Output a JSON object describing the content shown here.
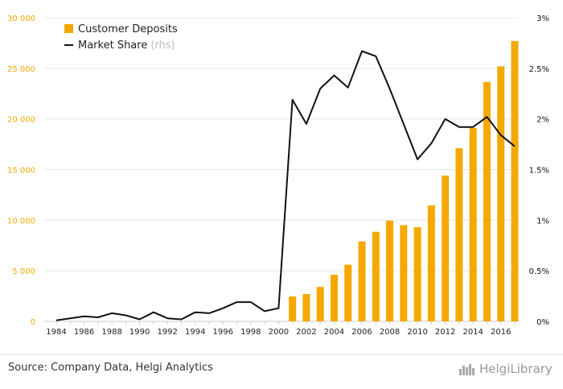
{
  "footer": {
    "source": "Source: Company Data, Helgi Analytics",
    "brand": "HelgiLibrary"
  },
  "colors": {
    "bar": "#f5a800",
    "line": "#111111",
    "left_axis_text": "#f5a800",
    "right_axis_text": "#111111",
    "grid": "#e8e8e8"
  },
  "chart_data": {
    "type": "bar",
    "x": [
      1984,
      1985,
      1986,
      1987,
      1988,
      1989,
      1990,
      1991,
      1992,
      1993,
      1994,
      1995,
      1996,
      1997,
      1998,
      1999,
      2000,
      2001,
      2002,
      2003,
      2004,
      2005,
      2006,
      2007,
      2008,
      2009,
      2010,
      2011,
      2012,
      2013,
      2014,
      2015,
      2016,
      2017
    ],
    "x_tick_labels": [
      "1984",
      "1986",
      "1988",
      "1990",
      "1992",
      "1994",
      "1996",
      "1998",
      "2000",
      "2002",
      "2004",
      "2006",
      "2008",
      "2010",
      "2012",
      "2014",
      "2016"
    ],
    "series": [
      {
        "name": "Customer Deposits",
        "kind": "bar",
        "axis": "left",
        "values": [
          null,
          null,
          null,
          null,
          null,
          null,
          null,
          null,
          null,
          null,
          null,
          null,
          null,
          null,
          null,
          null,
          null,
          2450,
          2700,
          3400,
          4600,
          5600,
          7900,
          8850,
          9950,
          9500,
          9300,
          11450,
          14400,
          17100,
          19100,
          23650,
          25200,
          27700
        ]
      },
      {
        "name": "Market Share",
        "name_suffix": "(rhs)",
        "kind": "line",
        "axis": "right",
        "unit": "%",
        "values": [
          0.01,
          0.03,
          0.05,
          0.04,
          0.08,
          0.06,
          0.02,
          0.09,
          0.03,
          0.02,
          0.09,
          0.08,
          0.13,
          0.19,
          0.19,
          0.1,
          0.13,
          2.19,
          1.95,
          2.3,
          2.43,
          2.31,
          2.67,
          2.62,
          2.3,
          1.95,
          1.6,
          1.76,
          2.0,
          1.92,
          1.92,
          2.02,
          1.84,
          1.73
        ]
      }
    ],
    "left_axis": {
      "ylim": [
        0,
        30000
      ],
      "ticks": [
        0,
        5000,
        10000,
        15000,
        20000,
        25000,
        30000
      ],
      "tick_labels": [
        "0",
        "5 000",
        "10 000",
        "15 000",
        "20 000",
        "25 000",
        "30 000"
      ]
    },
    "right_axis": {
      "ylim": [
        0,
        3
      ],
      "ticks": [
        0,
        0.5,
        1,
        1.5,
        2,
        2.5,
        3
      ],
      "tick_labels": [
        "0%",
        "0.5%",
        "1%",
        "1.5%",
        "2%",
        "2.5%",
        "3%"
      ]
    },
    "xlim": [
      1984,
      2017
    ],
    "grid": true,
    "legend_position": "top-left"
  }
}
